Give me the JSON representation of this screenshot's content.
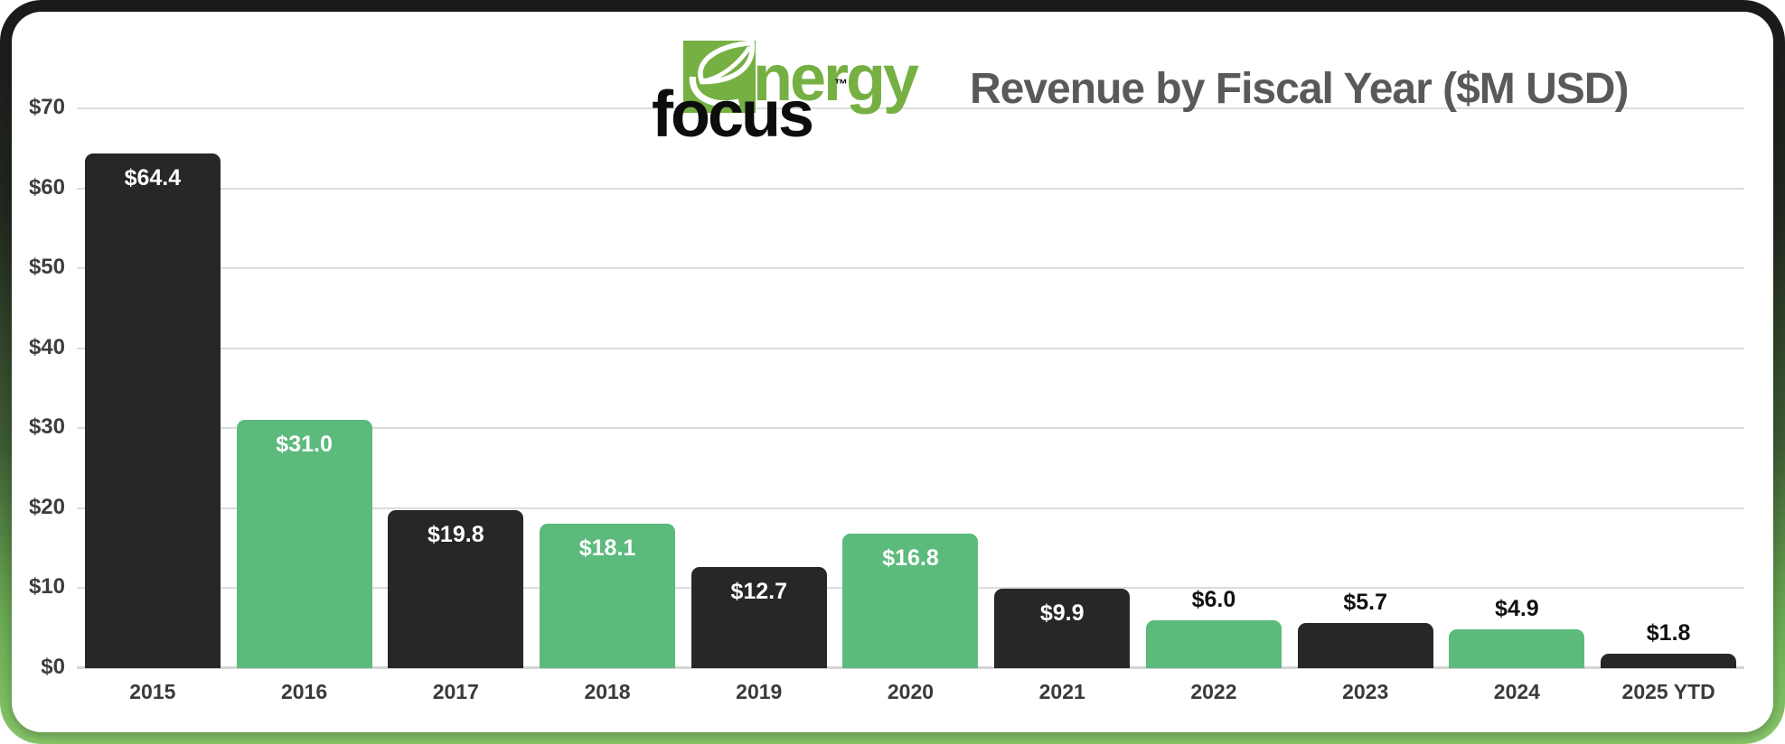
{
  "brand": {
    "name_part1": "nergy",
    "name_part2": "focus",
    "trademark": "™",
    "logo_green": "#76B043"
  },
  "header": {
    "title": "Revenue by Fiscal Year ($M USD)",
    "title_color": "#595959"
  },
  "chart_data": {
    "type": "bar",
    "title": "Revenue by Fiscal Year ($M USD)",
    "categories": [
      "2015",
      "2016",
      "2017",
      "2018",
      "2019",
      "2020",
      "2021",
      "2022",
      "2023",
      "2024",
      "2025 YTD"
    ],
    "values": [
      64.4,
      31.0,
      19.8,
      18.1,
      12.7,
      16.8,
      9.9,
      6.0,
      5.7,
      4.9,
      1.8
    ],
    "bar_labels": [
      "$64.4",
      "$31.0",
      "$19.8",
      "$18.1",
      "$12.7",
      "$16.8",
      "$9.9",
      "$6.0",
      "$5.7",
      "$4.9",
      "$1.8"
    ],
    "label_positions": [
      "inside",
      "inside",
      "inside",
      "inside",
      "inside",
      "inside",
      "inside",
      "above",
      "above",
      "above",
      "above"
    ],
    "bar_colors": [
      "#272727",
      "#5CBA7C",
      "#272727",
      "#5CBA7C",
      "#272727",
      "#5CBA7C",
      "#272727",
      "#5CBA7C",
      "#272727",
      "#5CBA7C",
      "#272727"
    ],
    "xlabel": "",
    "ylabel": "",
    "ylim": [
      0,
      70
    ],
    "ytick_values": [
      0,
      10,
      20,
      30,
      40,
      50,
      60,
      70
    ],
    "ytick_labels": [
      "$0",
      "$10",
      "$20",
      "$30",
      "$40",
      "$50",
      "$60",
      "$70"
    ],
    "grid": true,
    "gridline_color": "#DCDCDC",
    "legend": "none"
  },
  "frame": {
    "border_top_color": "#1C1C1C",
    "border_bottom_color": "#8ACB6C"
  }
}
